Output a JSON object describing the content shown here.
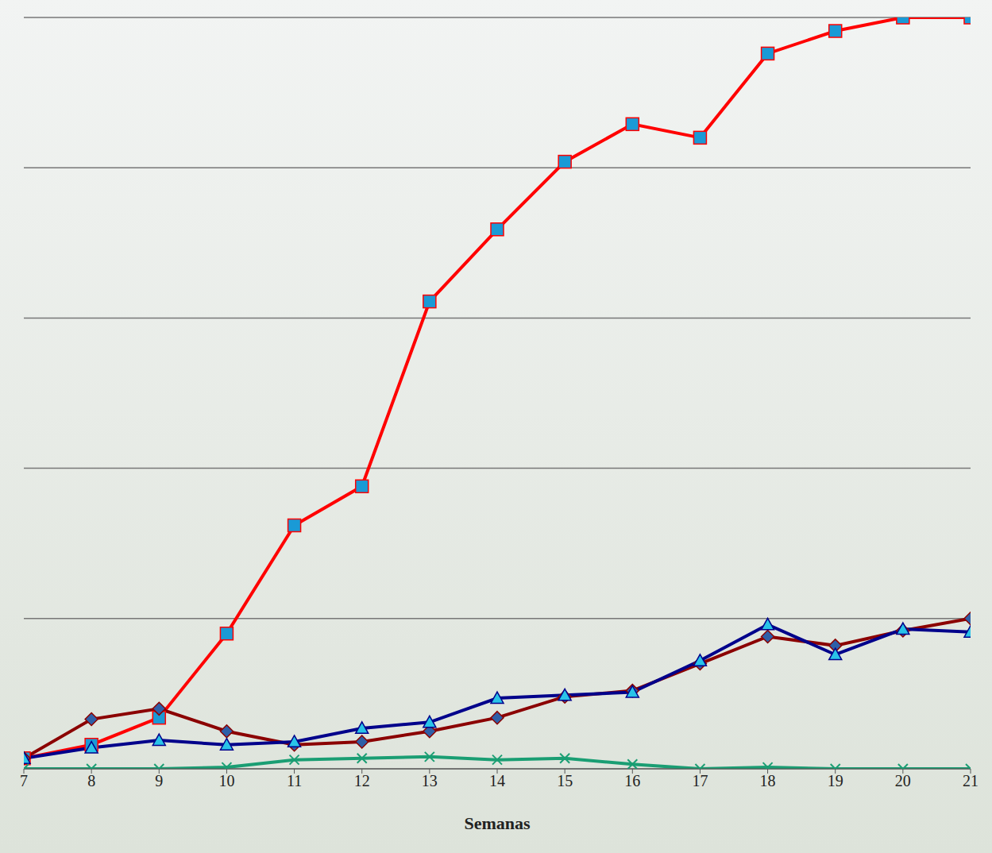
{
  "chart_data": {
    "type": "line",
    "x_label": "Semanas",
    "x": [
      7,
      8,
      9,
      10,
      11,
      12,
      13,
      14,
      15,
      16,
      17,
      18,
      19,
      20,
      21
    ],
    "xlim": [
      7,
      21
    ],
    "xticks": [
      7,
      8,
      9,
      10,
      11,
      12,
      13,
      14,
      15,
      16,
      17,
      18,
      19,
      20,
      21
    ],
    "ylim": [
      0,
      5
    ],
    "yticks": [
      0,
      1,
      2,
      3,
      4,
      5
    ],
    "grid": true,
    "tick_labels": "x",
    "series": [
      {
        "color": "#ff0000",
        "marker": "square",
        "values": [
          0.07,
          0.16,
          0.34,
          0.9,
          1.62,
          1.88,
          3.11,
          3.59,
          4.04,
          4.29,
          4.2,
          4.76,
          4.91,
          5.0,
          5.0
        ]
      },
      {
        "color": "#8b0000",
        "marker": "diamond",
        "values": [
          0.07,
          0.33,
          0.4,
          0.25,
          0.16,
          0.18,
          0.25,
          0.34,
          0.48,
          0.52,
          0.7,
          0.88,
          0.82,
          0.92,
          1.0
        ]
      },
      {
        "color": "#00008b",
        "marker": "triangle",
        "values": [
          0.07,
          0.14,
          0.19,
          0.16,
          0.18,
          0.27,
          0.31,
          0.47,
          0.49,
          0.51,
          0.72,
          0.96,
          0.76,
          0.93,
          0.91
        ]
      },
      {
        "color": "#1a9e73",
        "marker": "x",
        "values": [
          0,
          0,
          0,
          0.01,
          0.06,
          0.07,
          0.08,
          0.06,
          0.07,
          0.03,
          0,
          0.01,
          0,
          0,
          0
        ]
      }
    ]
  }
}
